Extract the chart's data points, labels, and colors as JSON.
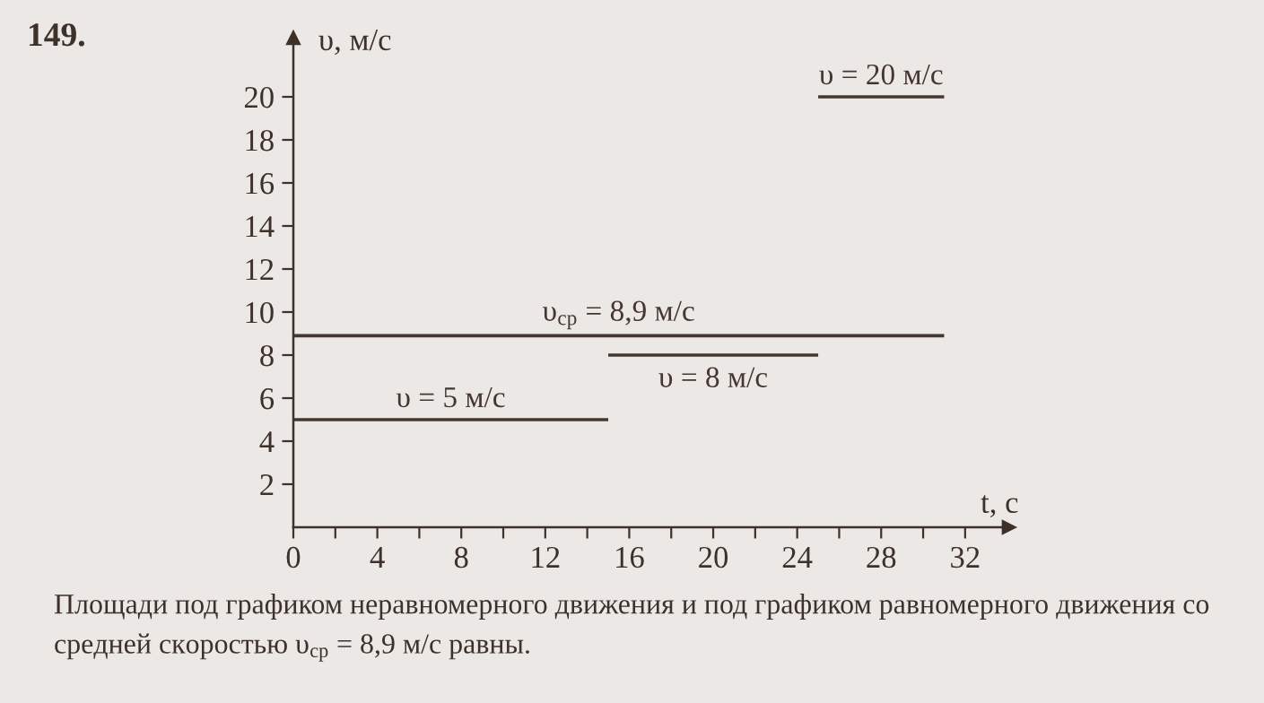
{
  "chart_data": {
    "type": "line",
    "title": "149.",
    "xlabel": "t, с",
    "ylabel": "υ, м/с",
    "xlim": [
      0,
      34.1
    ],
    "ylim": [
      0,
      22.75
    ],
    "xticks": [
      {
        "value": 0,
        "label": "0"
      },
      {
        "value": 2,
        "label": null
      },
      4,
      {
        "value": 6,
        "label": null
      },
      8,
      {
        "value": 10,
        "label": null
      },
      12,
      {
        "value": 14,
        "label": null
      },
      16,
      {
        "value": 18,
        "label": null
      },
      20,
      {
        "value": 22,
        "label": null
      },
      24,
      {
        "value": 26,
        "label": null
      },
      28,
      {
        "value": 30,
        "label": null
      },
      32
    ],
    "yticks": [
      2,
      4,
      6,
      8,
      10,
      12,
      14,
      16,
      18,
      20
    ],
    "line_style": "solid",
    "series": [
      {
        "name": "υ = 5 м/с",
        "color": "#45372f",
        "x": [
          0,
          15
        ],
        "values": [
          5,
          5
        ]
      },
      {
        "name": "υ$_{ср}$ = 8,9 м/с",
        "color": "#45372f",
        "x": [
          0,
          31
        ],
        "values": [
          8.9,
          8.9
        ]
      },
      {
        "name": "υ = 8 м/с",
        "color": "#45372f",
        "x": [
          15,
          25
        ],
        "values": [
          8,
          8
        ]
      },
      {
        "name": "υ = 20 м/с",
        "color": "#45372f",
        "x": [
          25,
          31
        ],
        "values": [
          20,
          20
        ]
      }
    ],
    "annotations": [
      "Площади под графиком неравномерного движения и под графиком равномерного движения со средней скоростью υ$_{ср}$ = 8,9 м/с равны."
    ]
  }
}
